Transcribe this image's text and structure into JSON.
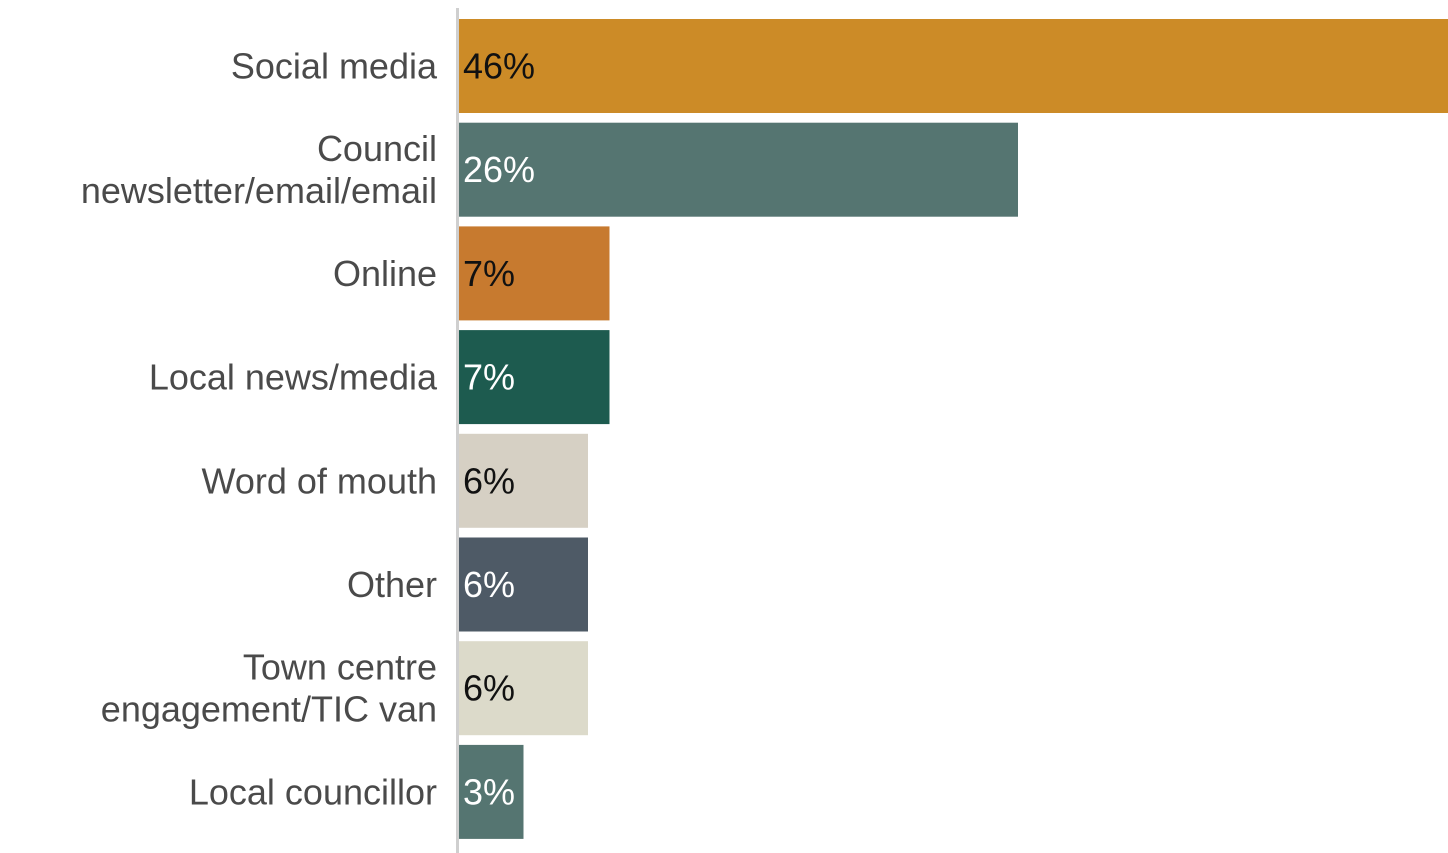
{
  "chart_data": {
    "type": "bar",
    "orientation": "horizontal",
    "categories": [
      [
        "Social media"
      ],
      [
        "Council",
        "newsletter/email/email"
      ],
      [
        "Online"
      ],
      [
        "Local news/media"
      ],
      [
        "Word of mouth"
      ],
      [
        "Other"
      ],
      [
        "Town centre",
        "engagement/TIC van"
      ],
      [
        "Local councillor"
      ]
    ],
    "values": [
      46,
      26,
      7,
      7,
      6,
      6,
      6,
      3
    ],
    "value_labels": [
      "46%",
      "26%",
      "7%",
      "7%",
      "6%",
      "6%",
      "6%",
      "3%"
    ],
    "colors": [
      "#CC8B27",
      "#557571",
      "#C77A2F",
      "#1D5B4F",
      "#D6D0C4",
      "#4E5A66",
      "#DCDACA",
      "#557571"
    ],
    "label_colors": [
      "#111111",
      "#ffffff",
      "#111111",
      "#ffffff",
      "#111111",
      "#ffffff",
      "#111111",
      "#ffffff"
    ],
    "xlim": [
      0,
      46
    ],
    "grid": false,
    "title": "",
    "xlabel": "",
    "ylabel": ""
  }
}
